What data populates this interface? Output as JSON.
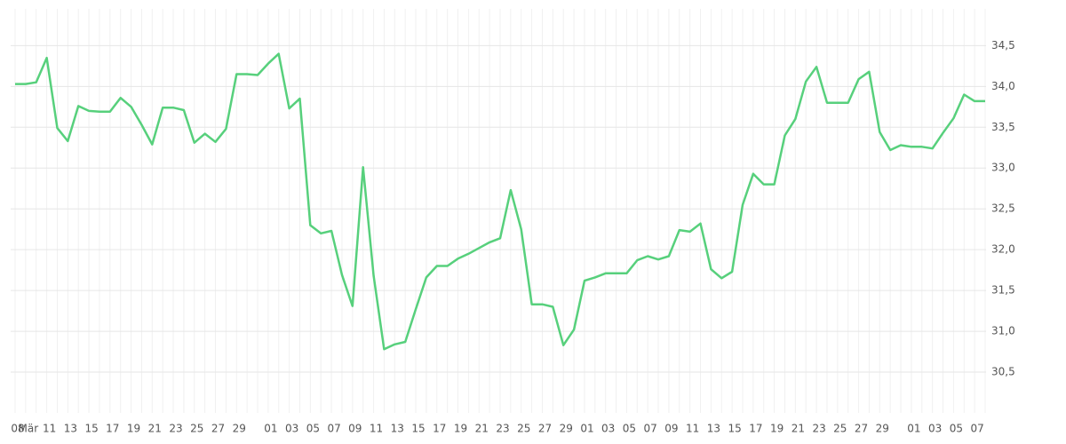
{
  "chart_data": {
    "type": "line",
    "categories": [
      "08",
      "Mär",
      null,
      "11",
      null,
      "13",
      null,
      "15",
      null,
      "17",
      null,
      "19",
      null,
      "21",
      null,
      "23",
      null,
      "25",
      null,
      "27",
      null,
      "29",
      null,
      null,
      "01",
      null,
      "03",
      null,
      "05",
      null,
      "07",
      null,
      "09",
      null,
      "11",
      null,
      "13",
      null,
      "15",
      null,
      "17",
      null,
      "19",
      null,
      "21",
      null,
      "23",
      null,
      "25",
      null,
      "27",
      null,
      "29",
      null,
      "01",
      null,
      "03",
      null,
      "05",
      null,
      "07",
      null,
      "09",
      null,
      "11",
      null,
      "13",
      null,
      "15",
      null,
      "17",
      null,
      "19",
      null,
      "21",
      null,
      "23",
      null,
      "25",
      null,
      "27",
      null,
      "29",
      null,
      null,
      "01",
      null,
      "03",
      null,
      "05",
      null,
      "07",
      null
    ],
    "series": [
      {
        "color": "#57d07c",
        "values": [
          34.03,
          34.03,
          34.05,
          34.35,
          33.49,
          33.33,
          33.76,
          33.7,
          33.69,
          33.69,
          33.86,
          33.75,
          33.53,
          33.29,
          33.74,
          33.74,
          33.71,
          33.31,
          33.42,
          33.32,
          33.48,
          34.15,
          34.15,
          34.14,
          34.28,
          34.4,
          33.73,
          33.85,
          32.3,
          32.2,
          32.23,
          31.69,
          31.31,
          33.01,
          31.68,
          30.78,
          30.84,
          30.87,
          31.27,
          31.66,
          31.8,
          31.8,
          31.89,
          31.95,
          32.02,
          32.09,
          32.14,
          32.73,
          32.25,
          31.33,
          31.33,
          31.3,
          30.83,
          31.02,
          31.62,
          31.66,
          31.71,
          31.71,
          31.71,
          31.87,
          31.92,
          31.88,
          31.92,
          32.24,
          32.22,
          32.32,
          31.76,
          31.65,
          31.73,
          32.55,
          32.93,
          32.8,
          32.8,
          33.4,
          33.6,
          34.06,
          34.24,
          33.8,
          33.8,
          33.8,
          34.09,
          34.18,
          33.44,
          33.22,
          33.28,
          33.26,
          33.26,
          33.24,
          33.43,
          33.61,
          33.9,
          33.82,
          33.82
        ]
      }
    ],
    "ylim": [
      30.0,
      34.95
    ],
    "yticks": [
      {
        "value": 30.5,
        "label": "30,5"
      },
      {
        "value": 31.0,
        "label": "31,0"
      },
      {
        "value": 31.5,
        "label": "31,5"
      },
      {
        "value": 32.0,
        "label": "32,0"
      },
      {
        "value": 32.5,
        "label": "32,5"
      },
      {
        "value": 33.0,
        "label": "33,0"
      },
      {
        "value": 33.5,
        "label": "33,5"
      },
      {
        "value": 34.0,
        "label": "34,0"
      },
      {
        "value": 34.5,
        "label": "34,5"
      }
    ],
    "grid": true
  }
}
